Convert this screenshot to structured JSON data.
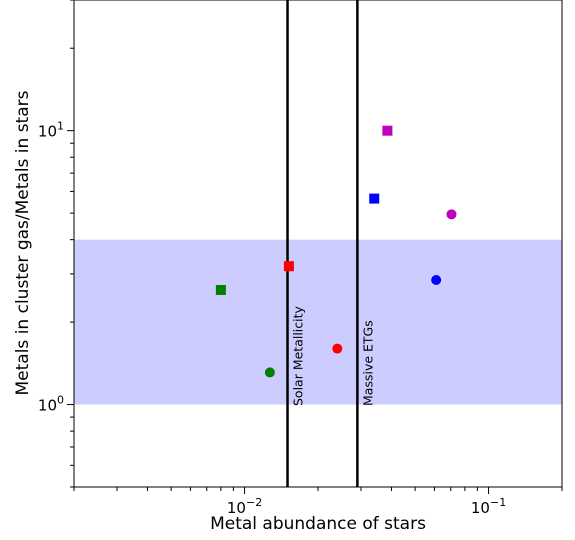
{
  "chart_data": {
    "type": "scatter",
    "title": "",
    "xlabel": "Metal abundance of stars",
    "ylabel": "Metals in cluster gas/Metals in stars",
    "xscale": "log",
    "yscale": "log",
    "xlim": [
      0.002,
      0.2
    ],
    "ylim": [
      0.5,
      30
    ],
    "grid": false,
    "legend": "none",
    "x_ticks": [
      {
        "value": 0.01,
        "base": "10",
        "exp": "−2"
      },
      {
        "value": 0.1,
        "base": "10",
        "exp": "−1"
      }
    ],
    "y_ticks": [
      {
        "value": 1,
        "base": "10",
        "exp": "0"
      },
      {
        "value": 10,
        "base": "10",
        "exp": "1"
      }
    ],
    "band": {
      "y0": 1.0,
      "y1": 4.0,
      "color": "#ccccff"
    },
    "vlines": [
      {
        "x": 0.015,
        "label": "Solar Metallicity",
        "color": "#000000"
      },
      {
        "x": 0.029,
        "label": "Massive ETGs",
        "color": "#000000"
      }
    ],
    "points": [
      {
        "x": 0.008,
        "y": 2.62,
        "marker": "square",
        "color": "#008000"
      },
      {
        "x": 0.0127,
        "y": 1.31,
        "marker": "circle",
        "color": "#008000"
      },
      {
        "x": 0.0152,
        "y": 3.2,
        "marker": "square",
        "color": "#ff0000"
      },
      {
        "x": 0.024,
        "y": 1.6,
        "marker": "circle",
        "color": "#ff0000"
      },
      {
        "x": 0.034,
        "y": 5.65,
        "marker": "square",
        "color": "#0000ff"
      },
      {
        "x": 0.061,
        "y": 2.85,
        "marker": "circle",
        "color": "#0000ff"
      },
      {
        "x": 0.0385,
        "y": 10.0,
        "marker": "square",
        "color": "#bf00bf"
      },
      {
        "x": 0.0705,
        "y": 4.95,
        "marker": "circle",
        "color": "#bf00bf"
      }
    ]
  }
}
